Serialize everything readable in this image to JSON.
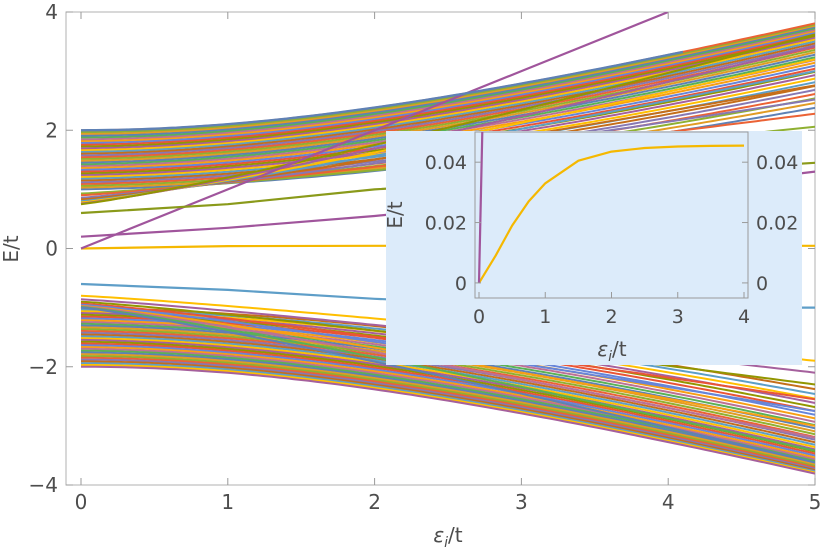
{
  "chart_data": [
    {
      "type": "line",
      "title": "",
      "xlabel": "εi/t",
      "xlabel_base": "ε",
      "xlabel_sub": "i",
      "xlabel_tail": "/t",
      "ylabel": "E/t",
      "xlim": [
        0,
        5
      ],
      "ylim": [
        -4,
        4
      ],
      "x_ticks": [
        0,
        1,
        2,
        3,
        4,
        5
      ],
      "y_ticks": [
        -4,
        -2,
        0,
        2,
        4
      ],
      "y_tick_labels": [
        "−4",
        "−2",
        "0",
        "2",
        "4"
      ],
      "grid": false,
      "legend": "none",
      "bands": [
        {
          "name": "upper band",
          "y_at_x0": [
            1.0,
            2.0
          ],
          "top_edge_at_x4": 4.0,
          "color": "#d69a45"
        },
        {
          "name": "lower band",
          "y_at_x0": [
            -2.0,
            -1.0
          ],
          "bottom_edge_at_x4": -4.0,
          "color": "#d69a45"
        }
      ],
      "series_description": "Eigenvalues E/t vs εi/t: one zero-energy level stays near 0 (yellow), one level rises linearly from 0 (purple, slope ≈ 1), and discrete levels split off from each band edge",
      "series": [
        {
          "values_y": [
            0.0,
            0.04,
            0.045,
            0.046,
            0.046,
            0.046
          ],
          "x": [
            0,
            1,
            2,
            3,
            4,
            5
          ],
          "color": "#f5b800"
        },
        {
          "values_y": [
            0.0,
            1.0,
            2.0,
            3.0,
            4.0
          ],
          "x": [
            0,
            1,
            2,
            3,
            4
          ],
          "color": "#a0559c"
        },
        {
          "values_y": [
            -0.6,
            -0.7,
            -0.85,
            -0.95,
            -1.0,
            -1.0
          ],
          "x": [
            0,
            1,
            2,
            3,
            4,
            5
          ],
          "color": "#5e9ec8"
        },
        {
          "values_y": [
            0.6,
            0.75,
            1.0,
            1.15,
            1.3,
            1.45
          ],
          "x": [
            0,
            1,
            2,
            3,
            4,
            5
          ],
          "color": "#8a9a1a"
        },
        {
          "values_y": [
            0.2,
            0.35,
            0.55,
            0.8,
            1.0,
            1.3
          ],
          "x": [
            0,
            1,
            2,
            3,
            4,
            5
          ],
          "color": "#a0559c"
        }
      ],
      "colors": [
        "#5e81b5",
        "#e19c24",
        "#8fb032",
        "#eb6235",
        "#8778b3",
        "#c56e1a",
        "#5d9ec7",
        "#ffbf00",
        "#a5609d",
        "#929600",
        "#e95536",
        "#6685d9",
        "#f89f13",
        "#bc7196",
        "#5ab156"
      ]
    },
    {
      "type": "line",
      "title": "",
      "xlabel": "εi/t",
      "xlabel_base": "ε",
      "xlabel_sub": "i",
      "xlabel_tail": "/t",
      "ylabel": "E/t",
      "xlim": [
        0,
        4
      ],
      "ylim": [
        -0.005,
        0.05
      ],
      "x_ticks": [
        0,
        1,
        2,
        3,
        4
      ],
      "y_ticks": [
        0,
        0.02,
        0.04
      ],
      "y_tick_labels": [
        "0",
        "0.02",
        "0.04"
      ],
      "grid": false,
      "legend": "none",
      "background": "#dcebfa",
      "series": [
        {
          "x": [
            0,
            0.25,
            0.5,
            0.75,
            1.0,
            1.5,
            2.0,
            2.5,
            3.0,
            3.5,
            4.0
          ],
          "values_y": [
            0.0,
            0.009,
            0.019,
            0.027,
            0.033,
            0.0405,
            0.0435,
            0.0447,
            0.0452,
            0.0454,
            0.0455
          ],
          "color": "#f5b800"
        },
        {
          "x": [
            0,
            0.05
          ],
          "values_y": [
            0.0,
            0.05
          ],
          "color": "#a0559c"
        }
      ]
    }
  ]
}
